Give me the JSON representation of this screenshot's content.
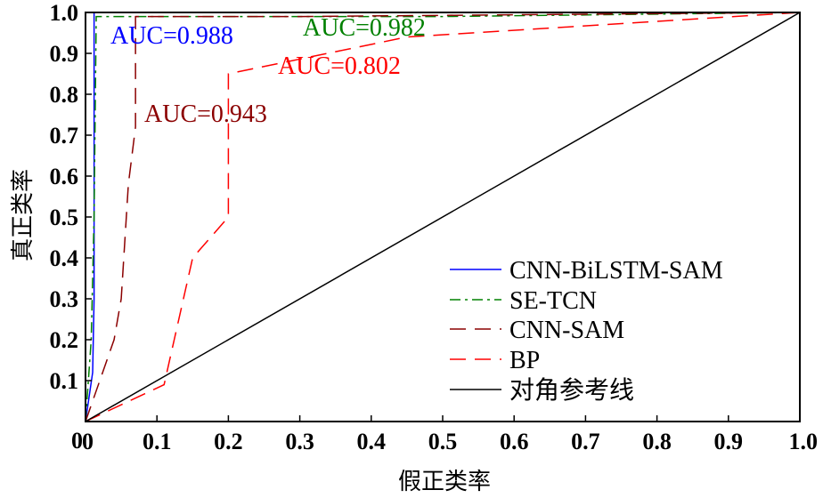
{
  "chart_data": {
    "type": "line",
    "xlabel": "假正类率",
    "ylabel": "真正类率",
    "xlim": [
      0,
      1
    ],
    "ylim": [
      0,
      1
    ],
    "x_ticks": [
      "0",
      "0.1",
      "0.2",
      "0.3",
      "0.4",
      "0.5",
      "0.6",
      "0.7",
      "0.8",
      "0.9",
      "1.0"
    ],
    "y_ticks": [
      "0.1",
      "0.2",
      "0.3",
      "0.4",
      "0.5",
      "0.6",
      "0.7",
      "0.8",
      "0.9",
      "1.0"
    ],
    "grid": false,
    "legend_position": "bottom-right",
    "series": [
      {
        "name": "CNN-BiLSTM-SAM",
        "color": "#0000ff",
        "dash": "solid",
        "auc_label": "AUC=0.988",
        "x": [
          0,
          0.01,
          0.012,
          0.012,
          1.0
        ],
        "y": [
          0,
          0.12,
          0.3,
          1.0,
          1.0
        ]
      },
      {
        "name": "SE-TCN",
        "color": "#008000",
        "dash": "dashdot",
        "auc_label": "AUC=0.982",
        "x": [
          0,
          0.008,
          0.012,
          0.015,
          0.5,
          1.0
        ],
        "y": [
          0,
          0.2,
          0.5,
          0.99,
          0.99,
          1.0
        ]
      },
      {
        "name": "CNN-SAM",
        "color": "#8b0000",
        "dash": "longdash",
        "auc_label": "AUC=0.943",
        "x": [
          0,
          0.02,
          0.04,
          0.05,
          0.06,
          0.07,
          0.07,
          0.3,
          1.0
        ],
        "y": [
          0,
          0.1,
          0.2,
          0.3,
          0.58,
          0.72,
          0.99,
          0.99,
          1.0
        ]
      },
      {
        "name": "BP",
        "color": "#ff0000",
        "dash": "longdash",
        "auc_label": "AUC=0.802",
        "x": [
          0,
          0.11,
          0.15,
          0.2,
          0.2,
          0.2,
          0.45,
          1.0
        ],
        "y": [
          0,
          0.09,
          0.4,
          0.5,
          0.55,
          0.85,
          0.94,
          1.0
        ]
      },
      {
        "name": "对角参考线",
        "color": "#000000",
        "dash": "solid",
        "x": [
          0,
          1
        ],
        "y": [
          0,
          1
        ]
      }
    ]
  }
}
